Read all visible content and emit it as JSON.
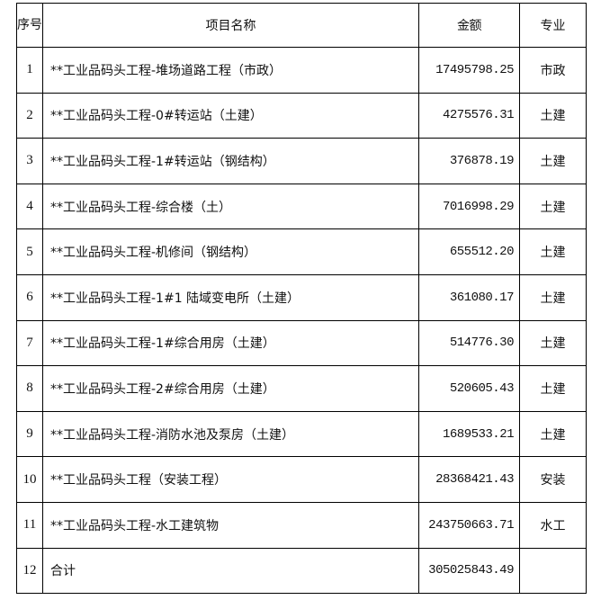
{
  "table": {
    "headers": {
      "seq": "序号",
      "name": "项目名称",
      "amount": "金额",
      "specialty": "专业"
    },
    "rows": [
      {
        "seq": "1",
        "name": "**工业品码头工程-堆场道路工程（市政）",
        "amount": "17495798.25",
        "specialty": "市政"
      },
      {
        "seq": "2",
        "name": "**工业品码头工程-0#转运站（土建）",
        "amount": "4275576.31",
        "specialty": "土建"
      },
      {
        "seq": "3",
        "name": "**工业品码头工程-1#转运站（钢结构）",
        "amount": "376878.19",
        "specialty": "土建"
      },
      {
        "seq": "4",
        "name": "**工业品码头工程-综合楼（土）",
        "amount": "7016998.29",
        "specialty": "土建"
      },
      {
        "seq": "5",
        "name": "**工业品码头工程-机修间（钢结构）",
        "amount": "655512.20",
        "specialty": "土建"
      },
      {
        "seq": "6",
        "name": "**工业品码头工程-1#1 陆域变电所（土建）",
        "amount": "361080.17",
        "specialty": "土建"
      },
      {
        "seq": "7",
        "name": "**工业品码头工程-1#综合用房（土建）",
        "amount": "514776.30",
        "specialty": "土建"
      },
      {
        "seq": "8",
        "name": "**工业品码头工程-2#综合用房（土建）",
        "amount": "520605.43",
        "specialty": "土建"
      },
      {
        "seq": "9",
        "name": "**工业品码头工程-消防水池及泵房（土建）",
        "amount": "1689533.21",
        "specialty": "土建"
      },
      {
        "seq": "10",
        "name": "**工业品码头工程（安装工程）",
        "amount": "28368421.43",
        "specialty": "安装"
      },
      {
        "seq": "11",
        "name": "**工业品码头工程-水工建筑物",
        "amount": "243750663.71",
        "specialty": "水工"
      },
      {
        "seq": "12",
        "name": "合计",
        "amount": "305025843.49",
        "specialty": ""
      }
    ]
  }
}
